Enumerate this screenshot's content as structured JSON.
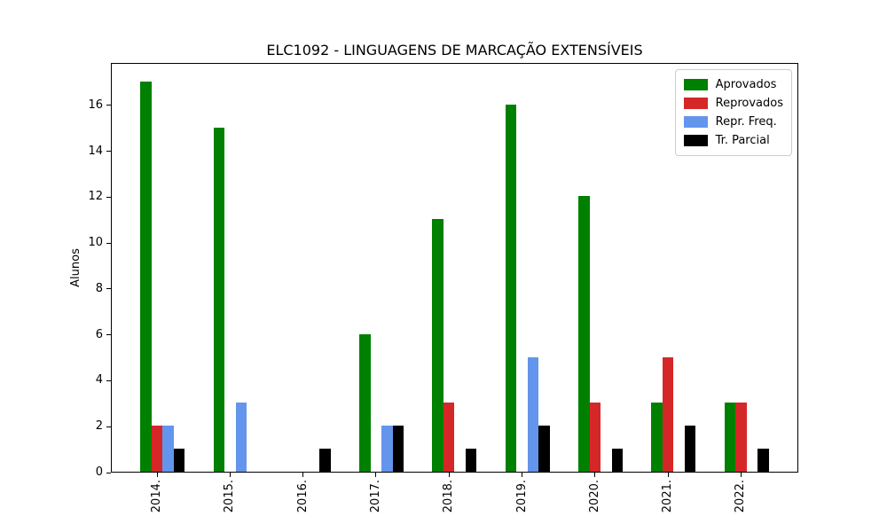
{
  "chart_data": {
    "type": "bar",
    "title": "ELC1092 - LINGUAGENS DE MARCAÇÃO EXTENSÍVEIS",
    "ylabel": "Alunos",
    "xlabel": "",
    "categories": [
      "2014.",
      "2015.",
      "2016.",
      "2017.",
      "2018.",
      "2019.",
      "2020.",
      "2021.",
      "2022."
    ],
    "series": [
      {
        "name": "Aprovados",
        "color": "#008000",
        "values": [
          17,
          15,
          0,
          6,
          11,
          16,
          12,
          3,
          3
        ]
      },
      {
        "name": "Reprovados",
        "color": "#d62728",
        "values": [
          2,
          0,
          0,
          0,
          3,
          0,
          3,
          5,
          3
        ]
      },
      {
        "name": "Repr. Freq.",
        "color": "#6495ed",
        "values": [
          2,
          3,
          0,
          2,
          0,
          5,
          0,
          0,
          0
        ]
      },
      {
        "name": "Tr. Parcial",
        "color": "#000000",
        "values": [
          1,
          0,
          1,
          2,
          1,
          2,
          1,
          2,
          1
        ]
      }
    ],
    "yticks": [
      0,
      2,
      4,
      6,
      8,
      10,
      12,
      14,
      16
    ],
    "ylim": [
      0,
      17.85
    ],
    "grid": false,
    "legend_position": "upper right",
    "background": "#ffffff",
    "axes_border_color": "#000000"
  }
}
